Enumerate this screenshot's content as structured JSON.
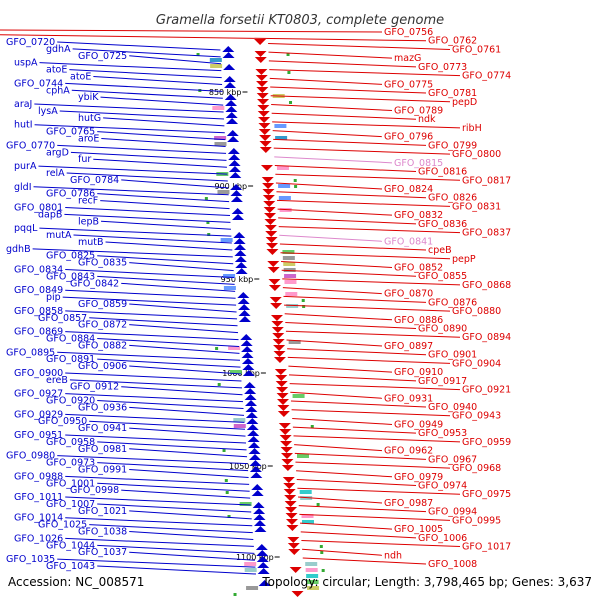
{
  "title": "Gramella forsetii KT0803, complete genome",
  "accession": "Accession: NC_008571",
  "topology": "Topology: circular; Length: 3,798,465 bp; Genes: 3,637",
  "colors": {
    "left": "#0000cc",
    "right": "#dd0000",
    "pink": "#dd88cc",
    "backbone": "#888888"
  },
  "ticks": [
    "850 kbp",
    "900 kbp",
    "950 kbp",
    "1000 kbp",
    "1050 kbp",
    "1100 kbp"
  ],
  "left_labels": [
    "GFO_0720",
    "gdhA",
    "GFO_0725",
    "uspA",
    "atoE",
    "atoE",
    "GFO_0744",
    "cphA",
    "ybiK",
    "araJ",
    "lysA",
    "hutG",
    "hutI",
    "GFO_0765",
    "aroE",
    "GFO_0770",
    "argD",
    "fur",
    "purA",
    "relA",
    "GFO_0784",
    "gldI",
    "GFO_0786",
    "recF",
    "GFO_0801",
    "dapB",
    "lepB",
    "pqqL",
    "mutA",
    "mutB",
    "gdhB",
    "GFO_0825",
    "GFO_0835",
    "GFO_0834",
    "GFO_0843",
    "GFO_0842",
    "GFO_0849",
    "pip",
    "GFO_0859",
    "GFO_0858",
    "GFO_0857",
    "GFO_0872",
    "GFO_0869",
    "GFO_0884",
    "GFO_0882",
    "GFO_0895",
    "GFO_0891",
    "GFO_0906",
    "GFO_0900",
    "ereB",
    "GFO_0912",
    "GFO_0927",
    "GFO_0920",
    "GFO_0936",
    "GFO_0929",
    "GFO_0950",
    "GFO_0941",
    "GFO_0951",
    "GFO_0958",
    "GFO_0981",
    "GFO_0980",
    "GFO_0973",
    "GFO_0991",
    "GFO_0988",
    "GFO_1001",
    "GFO_0998",
    "GFO_1011",
    "GFO_1007",
    "GFO_1021",
    "GFO_1014",
    "GFO_1025",
    "GFO_1038",
    "GFO_1026",
    "GFO_1044",
    "GFO_1037",
    "GFO_1035",
    "GFO_1043"
  ],
  "right_labels": [
    "GFO_0756",
    "GFO_0762",
    "GFO_0761",
    "mazG",
    "GFO_0773",
    "GFO_0774",
    "GFO_0775",
    "GFO_0781",
    "pepD",
    "GFO_0789",
    "ndk",
    "ribH",
    "GFO_0796",
    "GFO_0799",
    "GFO_0800",
    "GFO_0815",
    "GFO_0816",
    "GFO_0817",
    "GFO_0824",
    "GFO_0826",
    "GFO_0831",
    "GFO_0832",
    "GFO_0836",
    "GFO_0837",
    "GFO_0841",
    "cpeB",
    "pepP",
    "GFO_0852",
    "GFO_0855",
    "GFO_0868",
    "GFO_0870",
    "GFO_0876",
    "GFO_0880",
    "GFO_0886",
    "GFO_0890",
    "GFO_0894",
    "GFO_0897",
    "GFO_0901",
    "GFO_0904",
    "GFO_0910",
    "GFO_0917",
    "GFO_0921",
    "GFO_0931",
    "GFO_0940",
    "GFO_0943",
    "GFO_0949",
    "GFO_0953",
    "GFO_0959",
    "GFO_0962",
    "GFO_0967",
    "GFO_0968",
    "GFO_0979",
    "GFO_0974",
    "GFO_0975",
    "GFO_0987",
    "GFO_0994",
    "GFO_0995",
    "GFO_1005",
    "GFO_1006",
    "GFO_1017",
    "ndh",
    "GFO_1008"
  ]
}
